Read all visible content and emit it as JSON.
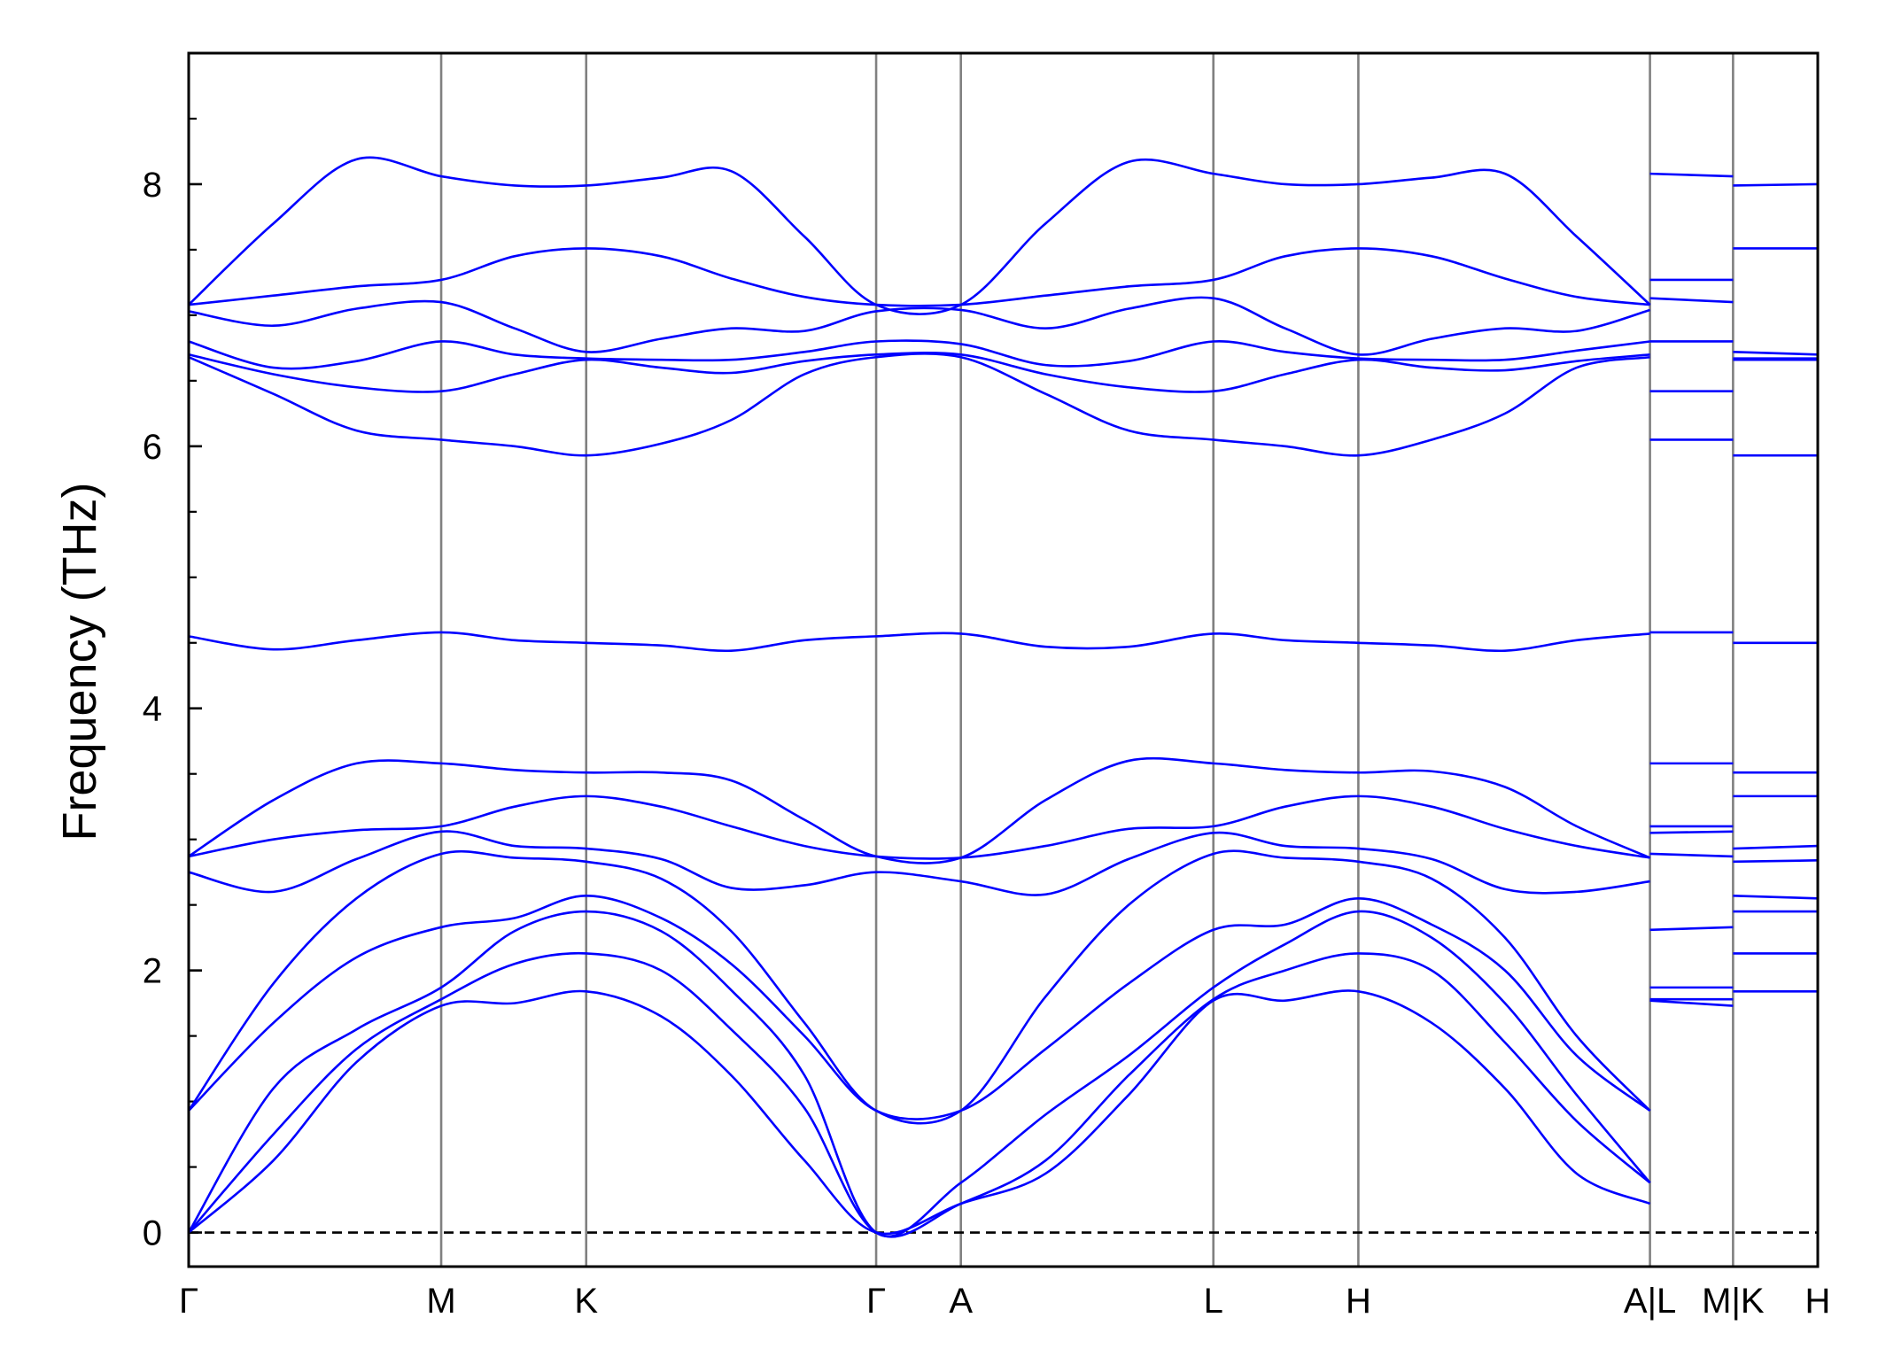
{
  "chart_data": {
    "type": "line",
    "ylabel": "Frequency (THz)",
    "ylim": [
      -0.26,
      9.0
    ],
    "yticks": [
      0,
      2,
      4,
      6,
      8
    ],
    "yminorticks": [
      0.5,
      1,
      1.5,
      2.5,
      3,
      3.5,
      4.5,
      5,
      5.5,
      6.5,
      7,
      7.5,
      8.5
    ],
    "xlim": [
      0,
      1.0
    ],
    "xticks": [
      {
        "value": 0,
        "label": "Γ"
      },
      {
        "value": 0.155,
        "label": "M"
      },
      {
        "value": 0.244,
        "label": "K"
      },
      {
        "value": 0.422,
        "label": "Γ"
      },
      {
        "value": 0.474,
        "label": "A"
      },
      {
        "value": 0.629,
        "label": "L"
      },
      {
        "value": 0.718,
        "label": "H"
      },
      {
        "value": 0.897,
        "label": "A|L"
      },
      {
        "value": 0.948,
        "label": "M|K"
      },
      {
        "value": 1.0,
        "label": "H"
      }
    ],
    "xgrid": true,
    "grid_color": "#808080",
    "hline": 0,
    "color": "#0000ff",
    "x": [
      0,
      0.052,
      0.103,
      0.155,
      0.2,
      0.244,
      0.29,
      0.333,
      0.378,
      0.422,
      0.474,
      0.526,
      0.577,
      0.629,
      0.673,
      0.718,
      0.763,
      0.808,
      0.852,
      0.897,
      0.897,
      0.897,
      0.948,
      0.948,
      0.948,
      1.0
    ],
    "series": [
      {
        "values": [
          0,
          0.55,
          1.3,
          1.73,
          1.75,
          1.84,
          1.65,
          1.2,
          0.55,
          0,
          0.22,
          0.45,
          1.05,
          1.77,
          1.77,
          1.84,
          1.6,
          1.1,
          0.45,
          0.22,
          null,
          1.77,
          1.73,
          null,
          1.84,
          1.84
        ]
      },
      {
        "values": [
          0,
          0.75,
          1.4,
          1.78,
          2.05,
          2.13,
          2.0,
          1.55,
          0.95,
          0,
          0.22,
          0.55,
          1.2,
          1.78,
          2.0,
          2.13,
          2.0,
          1.45,
          0.85,
          0.38,
          null,
          1.78,
          1.78,
          null,
          2.13,
          2.13
        ]
      },
      {
        "values": [
          0,
          1.1,
          1.55,
          1.87,
          2.3,
          2.45,
          2.3,
          1.85,
          1.2,
          0,
          0.38,
          0.9,
          1.35,
          1.87,
          2.2,
          2.45,
          2.25,
          1.75,
          1.05,
          0.38,
          null,
          1.87,
          1.87,
          null,
          2.45,
          2.45
        ]
      },
      {
        "values": [
          0.93,
          1.6,
          2.1,
          2.33,
          2.4,
          2.57,
          2.4,
          2.05,
          1.5,
          0.93,
          0.93,
          1.4,
          1.9,
          2.31,
          2.35,
          2.55,
          2.35,
          2.0,
          1.35,
          0.93,
          null,
          2.31,
          2.33,
          null,
          2.57,
          2.55
        ]
      },
      {
        "values": [
          0.93,
          1.9,
          2.55,
          2.89,
          2.86,
          2.83,
          2.7,
          2.3,
          1.6,
          0.93,
          0.93,
          1.8,
          2.5,
          2.89,
          2.86,
          2.83,
          2.7,
          2.25,
          1.5,
          0.93,
          null,
          2.89,
          2.87,
          null,
          2.83,
          2.84
        ]
      },
      {
        "values": [
          2.75,
          2.6,
          2.85,
          3.06,
          2.95,
          2.93,
          2.85,
          2.63,
          2.65,
          2.75,
          2.68,
          2.58,
          2.85,
          3.05,
          2.95,
          2.93,
          2.85,
          2.62,
          2.6,
          2.68,
          null,
          3.05,
          3.06,
          null,
          2.93,
          2.95
        ]
      },
      {
        "values": [
          2.87,
          3.0,
          3.07,
          3.1,
          3.25,
          3.33,
          3.25,
          3.1,
          2.95,
          2.87,
          2.86,
          2.95,
          3.08,
          3.1,
          3.25,
          3.33,
          3.25,
          3.08,
          2.95,
          2.86,
          null,
          3.1,
          3.1,
          null,
          3.33,
          3.33
        ]
      },
      {
        "values": [
          2.87,
          3.3,
          3.58,
          3.58,
          3.53,
          3.51,
          3.51,
          3.45,
          3.15,
          2.87,
          2.86,
          3.3,
          3.6,
          3.58,
          3.53,
          3.51,
          3.52,
          3.4,
          3.1,
          2.86,
          null,
          3.58,
          3.58,
          null,
          3.51,
          3.51
        ]
      },
      {
        "values": [
          4.55,
          4.45,
          4.52,
          4.58,
          4.52,
          4.5,
          4.48,
          4.44,
          4.52,
          4.55,
          4.57,
          4.47,
          4.47,
          4.57,
          4.52,
          4.5,
          4.48,
          4.44,
          4.52,
          4.57,
          null,
          4.58,
          4.58,
          null,
          4.5,
          4.5
        ]
      },
      {
        "values": [
          6.68,
          6.4,
          6.12,
          6.05,
          6.0,
          5.93,
          6.02,
          6.2,
          6.55,
          6.68,
          6.68,
          6.4,
          6.12,
          6.05,
          6.0,
          5.93,
          6.05,
          6.25,
          6.6,
          6.68,
          null,
          6.05,
          6.05,
          null,
          5.93,
          5.93
        ]
      },
      {
        "values": [
          6.7,
          6.55,
          6.45,
          6.42,
          6.55,
          6.66,
          6.6,
          6.56,
          6.65,
          6.7,
          6.7,
          6.55,
          6.45,
          6.42,
          6.55,
          6.66,
          6.6,
          6.58,
          6.65,
          6.7,
          null,
          6.42,
          6.42,
          null,
          6.66,
          6.66
        ]
      },
      {
        "values": [
          6.8,
          6.6,
          6.65,
          6.8,
          6.7,
          6.67,
          6.66,
          6.66,
          6.72,
          6.8,
          6.78,
          6.62,
          6.65,
          6.8,
          6.72,
          6.67,
          6.66,
          6.66,
          6.73,
          6.8,
          null,
          6.8,
          6.8,
          null,
          6.67,
          6.67
        ]
      },
      {
        "values": [
          7.03,
          6.92,
          7.05,
          7.1,
          6.9,
          6.72,
          6.82,
          6.9,
          6.88,
          7.03,
          7.04,
          6.9,
          7.05,
          7.13,
          6.9,
          6.7,
          6.82,
          6.9,
          6.88,
          7.04,
          null,
          7.13,
          7.1,
          null,
          6.72,
          6.7
        ]
      },
      {
        "values": [
          7.08,
          7.15,
          7.22,
          7.27,
          7.45,
          7.51,
          7.45,
          7.28,
          7.14,
          7.08,
          7.08,
          7.15,
          7.22,
          7.27,
          7.45,
          7.51,
          7.45,
          7.28,
          7.14,
          7.08,
          null,
          7.27,
          7.27,
          null,
          7.51,
          7.51
        ]
      },
      {
        "values": [
          7.08,
          7.7,
          8.19,
          8.06,
          7.99,
          7.99,
          8.05,
          8.1,
          7.6,
          7.08,
          7.08,
          7.7,
          8.17,
          8.08,
          8.0,
          8.0,
          8.05,
          8.08,
          7.6,
          7.08,
          null,
          8.08,
          8.06,
          null,
          7.99,
          8.0
        ]
      }
    ]
  }
}
